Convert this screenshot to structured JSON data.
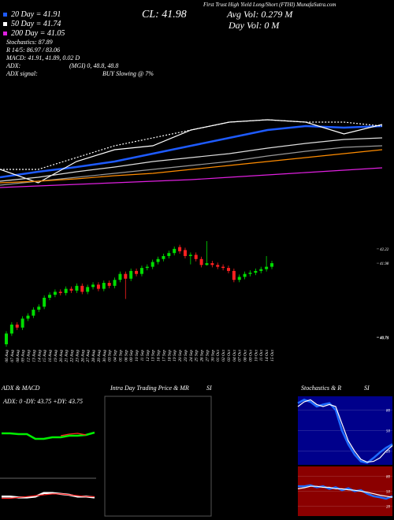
{
  "chart_data": [
    {
      "type": "line",
      "annotations": [
        "First Trust High Yield Long/Short (FTHI) MunafaSutra.com",
        "20 Day = 41.91",
        "50 Day = 41.74",
        "200 Day = 41.05",
        "Stochastics: 87.89",
        "R 14/5: 86.97 / 83.06",
        "MACD: 41.91, 41.89, 0.02 D",
        "ADX:",
        "(MGI) 0, 48.8, 48.8",
        "ADX signal:",
        "BUY Slowing @ 7%",
        "CL: 41.98",
        "Avg Vol: 0.279 M",
        "Day Vol: 0 M"
      ],
      "ylim": [
        40,
        42.7
      ],
      "series": [
        {
          "color": "#1e5bff",
          "values": [
            40.45,
            40.66,
            40.84,
            41.05,
            41.35,
            41.65,
            41.95,
            42.25,
            42.4,
            42.34,
            42.4
          ]
        },
        {
          "color": "#ffffff",
          "values": [
            40.75,
            40.24,
            41.05,
            41.5,
            41.65,
            42.25,
            42.55,
            42.64,
            42.55,
            42.1,
            42.46
          ]
        },
        {
          "color": "#ffffff",
          "dashed": true,
          "values": [
            40.75,
            40.75,
            41.2,
            41.65,
            41.95,
            42.25,
            42.55,
            42.64,
            42.55,
            42.55,
            42.4
          ]
        },
        {
          "color": "#dddddd",
          "values": [
            40.3,
            40.45,
            40.66,
            40.84,
            41.05,
            41.2,
            41.35,
            41.56,
            41.74,
            41.89,
            41.95
          ]
        },
        {
          "color": "#999999",
          "values": [
            40.15,
            40.3,
            40.45,
            40.6,
            40.75,
            40.9,
            41.05,
            41.26,
            41.44,
            41.59,
            41.65
          ]
        },
        {
          "color": "#ff8c00",
          "values": [
            40.24,
            40.3,
            40.39,
            40.51,
            40.6,
            40.75,
            40.9,
            41.05,
            41.2,
            41.35,
            41.5
          ]
        },
        {
          "color": "#e020e0",
          "values": [
            40.06,
            40.12,
            40.18,
            40.24,
            40.3,
            40.36,
            40.45,
            40.54,
            40.63,
            40.72,
            40.81
          ]
        }
      ]
    },
    {
      "type": "candlestick",
      "categories": [
        "06 Aug",
        "07 Aug",
        "08 Aug",
        "09 Aug",
        "12 Aug",
        "13 Aug",
        "14 Aug",
        "15 Aug",
        "16 Aug",
        "19 Aug",
        "20 Aug",
        "21 Aug",
        "22 Aug",
        "23 Aug",
        "26 Aug",
        "27 Aug",
        "28 Aug",
        "29 Aug",
        "30 Aug",
        "03 Sep",
        "04 Sep",
        "05 Sep",
        "06 Sep",
        "09 Sep",
        "10 Sep",
        "11 Sep",
        "12 Sep",
        "13 Sep",
        "16 Sep",
        "17 Sep",
        "18 Sep",
        "19 Sep",
        "20 Sep",
        "23 Sep",
        "24 Sep",
        "25 Sep",
        "26 Sep",
        "27 Sep",
        "30 Sep",
        "01 Oct",
        "02 Oct",
        "03 Oct",
        "04 Oct",
        "07 Oct",
        "08 Oct",
        "09 Oct",
        "10 Oct",
        "11 Oct",
        "14 Oct",
        "15 Oct"
      ],
      "open": [
        40.62,
        40.8,
        40.95,
        40.9,
        41.05,
        41.1,
        41.2,
        41.25,
        41.4,
        41.45,
        41.5,
        41.48,
        41.55,
        41.52,
        41.6,
        41.5,
        41.58,
        41.62,
        41.55,
        41.65,
        41.6,
        41.7,
        41.8,
        41.72,
        41.85,
        41.8,
        41.9,
        41.92,
        42.0,
        42.05,
        42.1,
        42.15,
        42.25,
        42.2,
        42.1,
        42.12,
        42.05,
        41.95,
        41.98,
        41.95,
        41.92,
        41.9,
        41.85,
        41.7,
        41.75,
        41.8,
        41.82,
        41.85,
        41.88,
        41.92
      ],
      "high": [
        40.84,
        40.99,
        40.99,
        41.09,
        41.14,
        41.24,
        41.29,
        41.44,
        41.49,
        41.54,
        41.54,
        41.59,
        41.59,
        41.64,
        41.64,
        41.62,
        41.66,
        41.66,
        41.69,
        41.69,
        41.74,
        41.84,
        41.84,
        41.89,
        41.89,
        41.94,
        41.96,
        42.04,
        42.09,
        42.14,
        42.19,
        42.26,
        42.29,
        42.24,
        42.16,
        42.16,
        42.09,
        42.35,
        42.02,
        41.99,
        41.96,
        41.94,
        41.89,
        41.79,
        41.84,
        41.86,
        41.89,
        41.92,
        42.1,
        42.02
      ],
      "low": [
        40.58,
        40.76,
        40.86,
        40.86,
        41.01,
        41.06,
        41.16,
        41.21,
        41.36,
        41.41,
        41.44,
        41.44,
        41.48,
        41.48,
        41.46,
        41.46,
        41.54,
        41.51,
        41.51,
        41.56,
        41.56,
        41.66,
        41.38,
        41.68,
        41.76,
        41.76,
        41.86,
        41.88,
        41.96,
        42.01,
        42.06,
        42.11,
        42.14,
        42.06,
        41.96,
        42.01,
        41.91,
        41.94,
        41.91,
        41.88,
        41.86,
        41.81,
        41.66,
        41.66,
        41.71,
        41.76,
        41.78,
        41.81,
        41.84,
        41.88
      ],
      "close": [
        40.8,
        40.95,
        40.9,
        41.05,
        41.1,
        41.2,
        41.25,
        41.4,
        41.45,
        41.5,
        41.48,
        41.55,
        41.52,
        41.6,
        41.5,
        41.58,
        41.62,
        41.55,
        41.65,
        41.6,
        41.7,
        41.8,
        41.72,
        41.85,
        41.8,
        41.9,
        41.92,
        42.0,
        42.05,
        42.1,
        42.15,
        42.22,
        42.18,
        42.1,
        42.12,
        42.05,
        41.95,
        41.98,
        41.95,
        41.92,
        41.9,
        41.85,
        41.7,
        41.75,
        41.8,
        41.82,
        41.85,
        41.88,
        41.92,
        41.98
      ],
      "up_color": "#00dd00",
      "down_color": "#ff2020",
      "ylim": [
        40.58,
        42.43
      ],
      "yticks": [
        42.22,
        41.98,
        40.74,
        40.73
      ]
    },
    {
      "type": "line",
      "title": "ADX & MACD",
      "annotations": [
        "ADX: 0  -DY: 43.75  +DY: 43.75"
      ],
      "ylim": [
        0,
        100
      ],
      "series": [
        {
          "color": "#00ee00",
          "values": [
            55,
            55,
            54,
            54,
            48,
            48,
            50,
            50,
            52,
            52,
            53,
            56
          ]
        },
        {
          "color": "#ff2020",
          "values": [
            null,
            null,
            null,
            null,
            null,
            null,
            null,
            52,
            54,
            55,
            53,
            null
          ]
        }
      ]
    },
    {
      "type": "line",
      "ylim": [
        -1,
        1
      ],
      "series": [
        {
          "color": "#ffffff",
          "values": [
            0.1,
            0.1,
            0.05,
            0.05,
            0.1,
            0.3,
            0.3,
            0.25,
            0.2,
            0.1,
            0.1,
            0.05
          ]
        },
        {
          "color": "#ff2020",
          "values": [
            0.0,
            0.0,
            0.05,
            0.1,
            0.15,
            0.2,
            0.25,
            0.25,
            0.2,
            0.15,
            0.1,
            0.1
          ]
        }
      ]
    },
    {
      "type": "line",
      "title": "Intra Day Trading Price & MR",
      "subtitle": "SI",
      "series": []
    },
    {
      "type": "line",
      "title": "Stochastics & R",
      "subtitle": "SI",
      "background": "#00008b",
      "ylim": [
        0,
        100
      ],
      "yticks": [
        20,
        50,
        80
      ],
      "grid": true,
      "series": [
        {
          "color": "#1e6bff",
          "values": [
            90,
            95,
            92,
            85,
            88,
            90,
            80,
            50,
            30,
            15,
            5,
            3,
            10,
            18,
            25,
            30
          ]
        },
        {
          "color": "#ffffff",
          "values": [
            85,
            92,
            95,
            88,
            85,
            88,
            85,
            60,
            35,
            20,
            8,
            4,
            5,
            10,
            20,
            28
          ]
        }
      ]
    },
    {
      "type": "line",
      "background": "#8b0000",
      "ylim": [
        0,
        100
      ],
      "yticks": [
        20,
        50,
        80
      ],
      "grid": true,
      "series": [
        {
          "color": "#1e6bff",
          "values": [
            60,
            60,
            62,
            58,
            60,
            55,
            58,
            52,
            56,
            50,
            52,
            45,
            40,
            38,
            35,
            40
          ]
        },
        {
          "color": "#ffffff",
          "values": [
            55,
            57,
            60,
            60,
            58,
            58,
            55,
            55,
            53,
            52,
            50,
            48,
            45,
            42,
            40,
            38
          ]
        }
      ]
    }
  ]
}
